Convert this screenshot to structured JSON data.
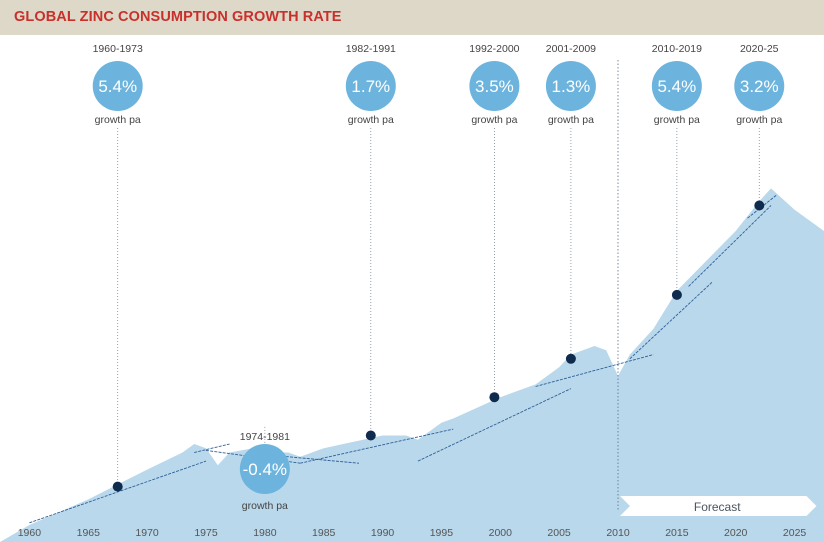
{
  "title": "GLOBAL ZINC CONSUMPTION GROWTH RATE",
  "forecast_label": "Forecast",
  "colors": {
    "title": "#c9302c",
    "title_bar": "#ddd8c8",
    "area": "#b9d8eb",
    "circle": "#6cb4dd",
    "trend": "#2f5f99",
    "dot": "#0f2b4d"
  },
  "chart_data": {
    "type": "area",
    "xlim": [
      1957.5,
      2027.5
    ],
    "x_ticks": [
      1960,
      1965,
      1970,
      1975,
      1980,
      1985,
      1990,
      1995,
      2000,
      2005,
      2010,
      2015,
      2020,
      2025
    ],
    "series": [
      {
        "values": [
          [
            1957.5,
            0
          ],
          [
            1960,
            4
          ],
          [
            1965,
            10
          ],
          [
            1970,
            17
          ],
          [
            1973,
            21
          ],
          [
            1974,
            23
          ],
          [
            1975,
            22
          ],
          [
            1976,
            18
          ],
          [
            1977,
            21
          ],
          [
            1979,
            22
          ],
          [
            1980,
            23
          ],
          [
            1981,
            21
          ],
          [
            1982,
            21
          ],
          [
            1983,
            20
          ],
          [
            1985,
            22
          ],
          [
            1990,
            25
          ],
          [
            1992,
            25
          ],
          [
            1993,
            24
          ],
          [
            1995,
            28
          ],
          [
            1996,
            29
          ],
          [
            2000,
            34
          ],
          [
            2003,
            37
          ],
          [
            2005,
            41
          ],
          [
            2006,
            44
          ],
          [
            2008,
            46
          ],
          [
            2009,
            45
          ],
          [
            2010,
            39
          ],
          [
            2011,
            44
          ],
          [
            2013,
            50
          ],
          [
            2015,
            59
          ],
          [
            2020,
            73
          ],
          [
            2022,
            80
          ],
          [
            2023,
            83
          ],
          [
            2025,
            78
          ],
          [
            2027.5,
            73
          ]
        ]
      }
    ],
    "periods": [
      {
        "range": "1960-1973",
        "rate": "5.4%",
        "label": "growth pa",
        "year": 1967.5,
        "value": 13
      },
      {
        "range": "1974-1981",
        "rate": "-0.4%",
        "label": "growth pa",
        "year": 1980,
        "value": 16
      },
      {
        "range": "1982-1991",
        "rate": "1.7%",
        "label": "growth pa",
        "year": 1989,
        "value": 25
      },
      {
        "range": "1992-2000",
        "rate": "3.5%",
        "label": "growth pa",
        "year": 1999.5,
        "value": 34
      },
      {
        "range": "2001-2009",
        "rate": "1.3%",
        "label": "growth pa",
        "year": 2006,
        "value": 43
      },
      {
        "range": "2010-2019",
        "rate": "5.4%",
        "label": "growth pa",
        "year": 2015,
        "value": 58
      },
      {
        "range": "2020-25",
        "rate": "3.2%",
        "label": "growth pa",
        "year": 2022,
        "value": 79
      }
    ],
    "trend_lines": [
      [
        [
          1960,
          4.5
        ],
        [
          1975,
          19
        ]
      ],
      [
        [
          1974,
          21
        ],
        [
          1977,
          23
        ]
      ],
      [
        [
          1975,
          21.5
        ],
        [
          1983,
          18.5
        ]
      ],
      [
        [
          1980,
          20.5
        ],
        [
          1988,
          18.5
        ]
      ],
      [
        [
          1983,
          18.5
        ],
        [
          1996,
          26.5
        ]
      ],
      [
        [
          1993,
          19
        ],
        [
          2006,
          36
        ]
      ],
      [
        [
          2003,
          36.5
        ],
        [
          2013,
          44
        ]
      ],
      [
        [
          2011,
          43
        ],
        [
          2018,
          61
        ]
      ],
      [
        [
          2016,
          60
        ],
        [
          2023,
          79
        ]
      ],
      [
        [
          2021,
          76
        ],
        [
          2023.5,
          81.5
        ]
      ]
    ],
    "forecast_from": 2010,
    "ylim": [
      0,
      100
    ]
  }
}
